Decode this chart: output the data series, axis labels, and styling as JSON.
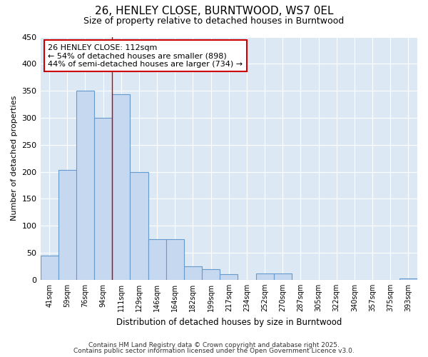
{
  "title_line1": "26, HENLEY CLOSE, BURNTWOOD, WS7 0EL",
  "title_line2": "Size of property relative to detached houses in Burntwood",
  "xlabel": "Distribution of detached houses by size in Burntwood",
  "ylabel": "Number of detached properties",
  "categories": [
    "41sqm",
    "59sqm",
    "76sqm",
    "94sqm",
    "111sqm",
    "129sqm",
    "146sqm",
    "164sqm",
    "182sqm",
    "199sqm",
    "217sqm",
    "234sqm",
    "252sqm",
    "270sqm",
    "287sqm",
    "305sqm",
    "322sqm",
    "340sqm",
    "357sqm",
    "375sqm",
    "393sqm"
  ],
  "values": [
    45,
    204,
    350,
    300,
    343,
    200,
    75,
    75,
    25,
    20,
    10,
    0,
    11,
    11,
    0,
    0,
    0,
    0,
    0,
    0,
    3
  ],
  "bar_color": "#c5d8f0",
  "bar_edge_color": "#6699cc",
  "vline_x": 3.5,
  "vline_color": "#cc0000",
  "annotation_text": "26 HENLEY CLOSE: 112sqm\n← 54% of detached houses are smaller (898)\n44% of semi-detached houses are larger (734) →",
  "annotation_box_color": "#ffffff",
  "annotation_box_edge": "#cc0000",
  "ylim": [
    0,
    450
  ],
  "yticks": [
    0,
    50,
    100,
    150,
    200,
    250,
    300,
    350,
    400,
    450
  ],
  "bg_color": "#dce9f5",
  "grid_color": "#ffffff",
  "fig_bg_color": "#ffffff",
  "footer_line1": "Contains HM Land Registry data © Crown copyright and database right 2025.",
  "footer_line2": "Contains public sector information licensed under the Open Government Licence v3.0."
}
